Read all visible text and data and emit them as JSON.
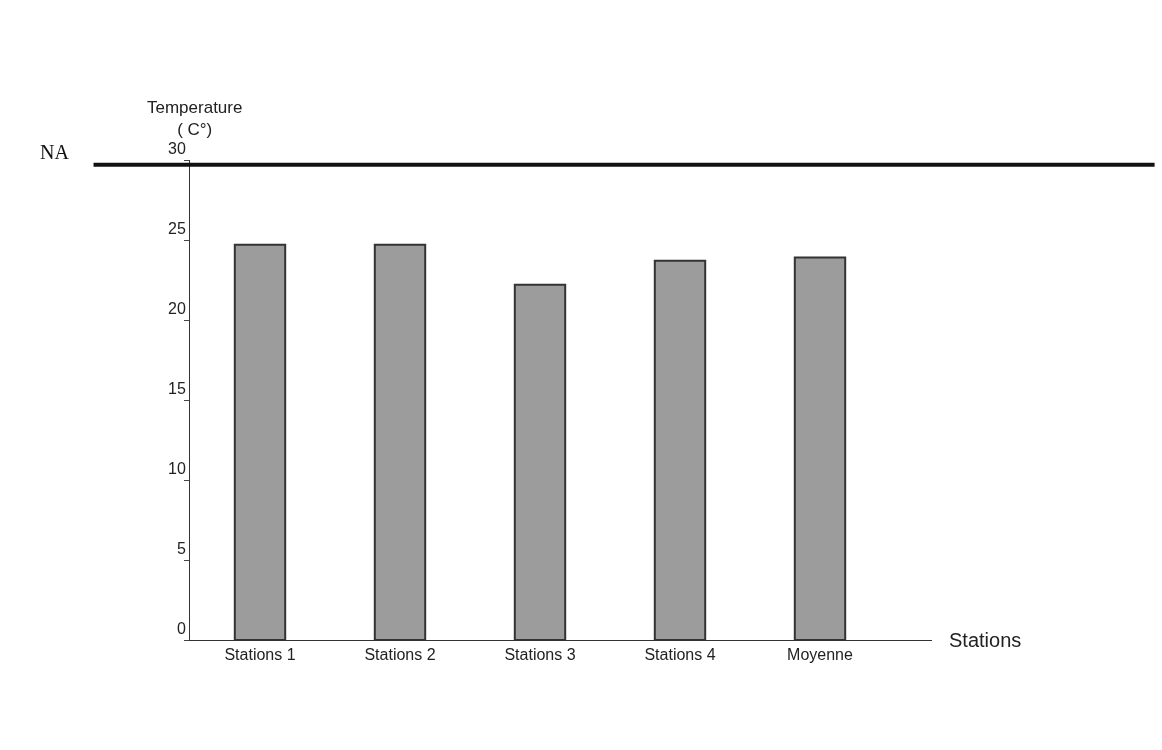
{
  "chart_data": {
    "type": "bar",
    "xlabel": "Stations",
    "ylabel": "Temperature\n( C°)",
    "categories": [
      "Stations 1",
      "Stations 2",
      "Stations 3",
      "Stations 4",
      "Moyenne"
    ],
    "values": [
      24.7,
      24.7,
      22.2,
      23.7,
      23.9
    ],
    "color": "#9c9c9c",
    "ylim": [
      0,
      30
    ],
    "yticks": [
      0,
      5,
      10,
      15,
      20,
      25,
      30
    ],
    "legend": false,
    "ref_lines": [
      {
        "axis": "y",
        "value": 29.7,
        "label": "NA",
        "color": "#111111",
        "line_style": "solid"
      }
    ]
  }
}
